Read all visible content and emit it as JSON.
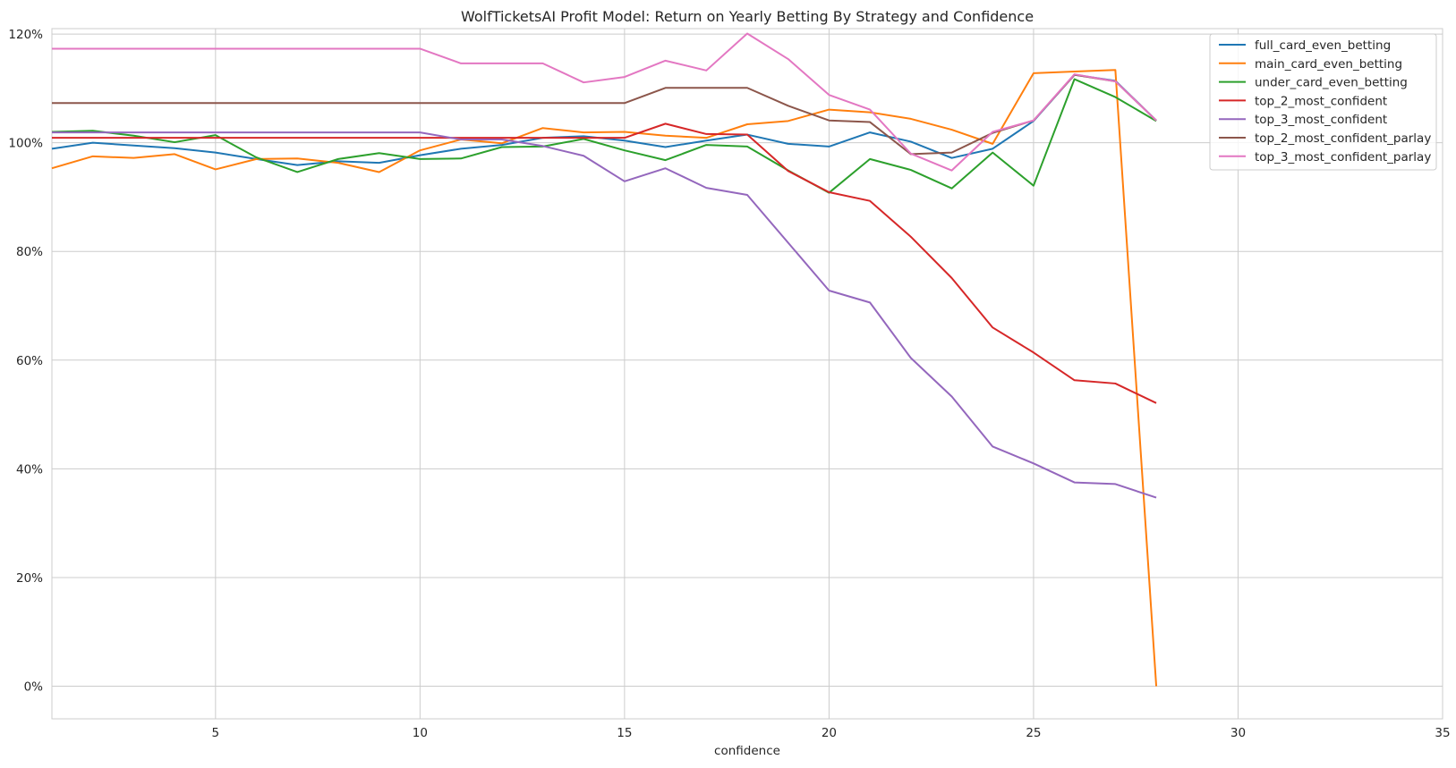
{
  "chart_data": {
    "type": "line",
    "title": "WolfTicketsAI Profit Model: Return on Yearly Betting By Strategy and Confidence",
    "xlabel": "confidence",
    "ylabel": "",
    "xlim": [
      1,
      35
    ],
    "ylim": [
      -6,
      121
    ],
    "x_ticks": [
      5,
      10,
      15,
      20,
      25,
      30,
      35
    ],
    "x_tick_labels": [
      "5",
      "10",
      "15",
      "20",
      "25",
      "30",
      "35"
    ],
    "y_ticks": [
      0,
      20,
      40,
      60,
      80,
      100,
      120
    ],
    "y_tick_labels": [
      "0%",
      "20%",
      "40%",
      "60%",
      "80%",
      "100%",
      "120%"
    ],
    "grid": true,
    "legend_position": "top-right",
    "x": [
      1,
      2,
      3,
      4,
      5,
      6,
      7,
      8,
      9,
      10,
      11,
      12,
      13,
      14,
      15,
      16,
      17,
      18,
      19,
      20,
      21,
      22,
      23,
      24,
      25,
      26,
      27,
      28
    ],
    "series": [
      {
        "name": "full_card_even_betting",
        "color": "#1f77b4",
        "values": [
          98.9,
          100.0,
          99.5,
          99.0,
          98.2,
          97.0,
          95.9,
          96.6,
          96.3,
          97.7,
          98.9,
          99.6,
          100.9,
          101.2,
          100.4,
          99.2,
          100.4,
          101.5,
          99.8,
          99.3,
          101.9,
          100.2,
          97.2,
          98.9,
          104.0,
          112.5,
          111.4,
          104.1
        ]
      },
      {
        "name": "main_card_even_betting",
        "color": "#ff7f0e",
        "values": [
          95.3,
          97.5,
          97.2,
          97.9,
          95.1,
          97.0,
          97.1,
          96.3,
          94.6,
          98.6,
          100.6,
          99.9,
          102.7,
          101.9,
          102.0,
          101.3,
          100.9,
          103.4,
          104.0,
          106.1,
          105.6,
          104.4,
          102.4,
          99.8,
          112.8,
          113.1,
          113.4,
          0.0
        ]
      },
      {
        "name": "under_card_even_betting",
        "color": "#2ca02c",
        "values": [
          102.0,
          102.2,
          101.3,
          100.1,
          101.4,
          97.3,
          94.6,
          97.0,
          98.1,
          97.0,
          97.1,
          99.2,
          99.3,
          100.7,
          98.6,
          96.8,
          99.6,
          99.3,
          94.9,
          90.8,
          97.0,
          95.0,
          91.6,
          98.2,
          92.1,
          111.7,
          108.4,
          104.0
        ]
      },
      {
        "name": "top_2_most_confident",
        "color": "#d62728",
        "values": [
          100.9,
          100.9,
          100.9,
          100.9,
          100.9,
          100.9,
          100.9,
          100.9,
          100.9,
          100.9,
          100.9,
          100.9,
          100.9,
          100.9,
          100.9,
          103.5,
          101.6,
          101.5,
          94.8,
          90.9,
          89.3,
          82.7,
          75.1,
          66.0,
          61.4,
          56.3,
          55.7,
          52.1
        ]
      },
      {
        "name": "top_3_most_confident",
        "color": "#9467bd",
        "values": [
          101.9,
          101.9,
          101.9,
          101.9,
          101.9,
          101.9,
          101.9,
          101.9,
          101.9,
          101.9,
          100.6,
          100.6,
          99.4,
          97.6,
          92.9,
          95.3,
          91.7,
          90.4,
          81.6,
          72.8,
          70.6,
          60.4,
          53.3,
          44.1,
          41.0,
          37.5,
          37.2,
          34.7
        ]
      },
      {
        "name": "top_2_most_confident_parlay",
        "color": "#8c564b",
        "values": [
          107.3,
          107.3,
          107.3,
          107.3,
          107.3,
          107.3,
          107.3,
          107.3,
          107.3,
          107.3,
          107.3,
          107.3,
          107.3,
          107.3,
          107.3,
          110.1,
          110.1,
          110.1,
          106.8,
          104.1,
          103.8,
          97.9,
          98.2,
          101.8,
          104.1,
          112.5,
          111.3,
          104.1
        ]
      },
      {
        "name": "top_3_most_confident_parlay",
        "color": "#e377c2",
        "values": [
          117.3,
          117.3,
          117.3,
          117.3,
          117.3,
          117.3,
          117.3,
          117.3,
          117.3,
          117.3,
          114.6,
          114.6,
          114.6,
          111.1,
          112.1,
          115.1,
          113.3,
          120.1,
          115.4,
          108.8,
          106.1,
          98.0,
          94.9,
          102.0,
          104.1,
          112.6,
          111.3,
          104.1
        ]
      }
    ]
  }
}
